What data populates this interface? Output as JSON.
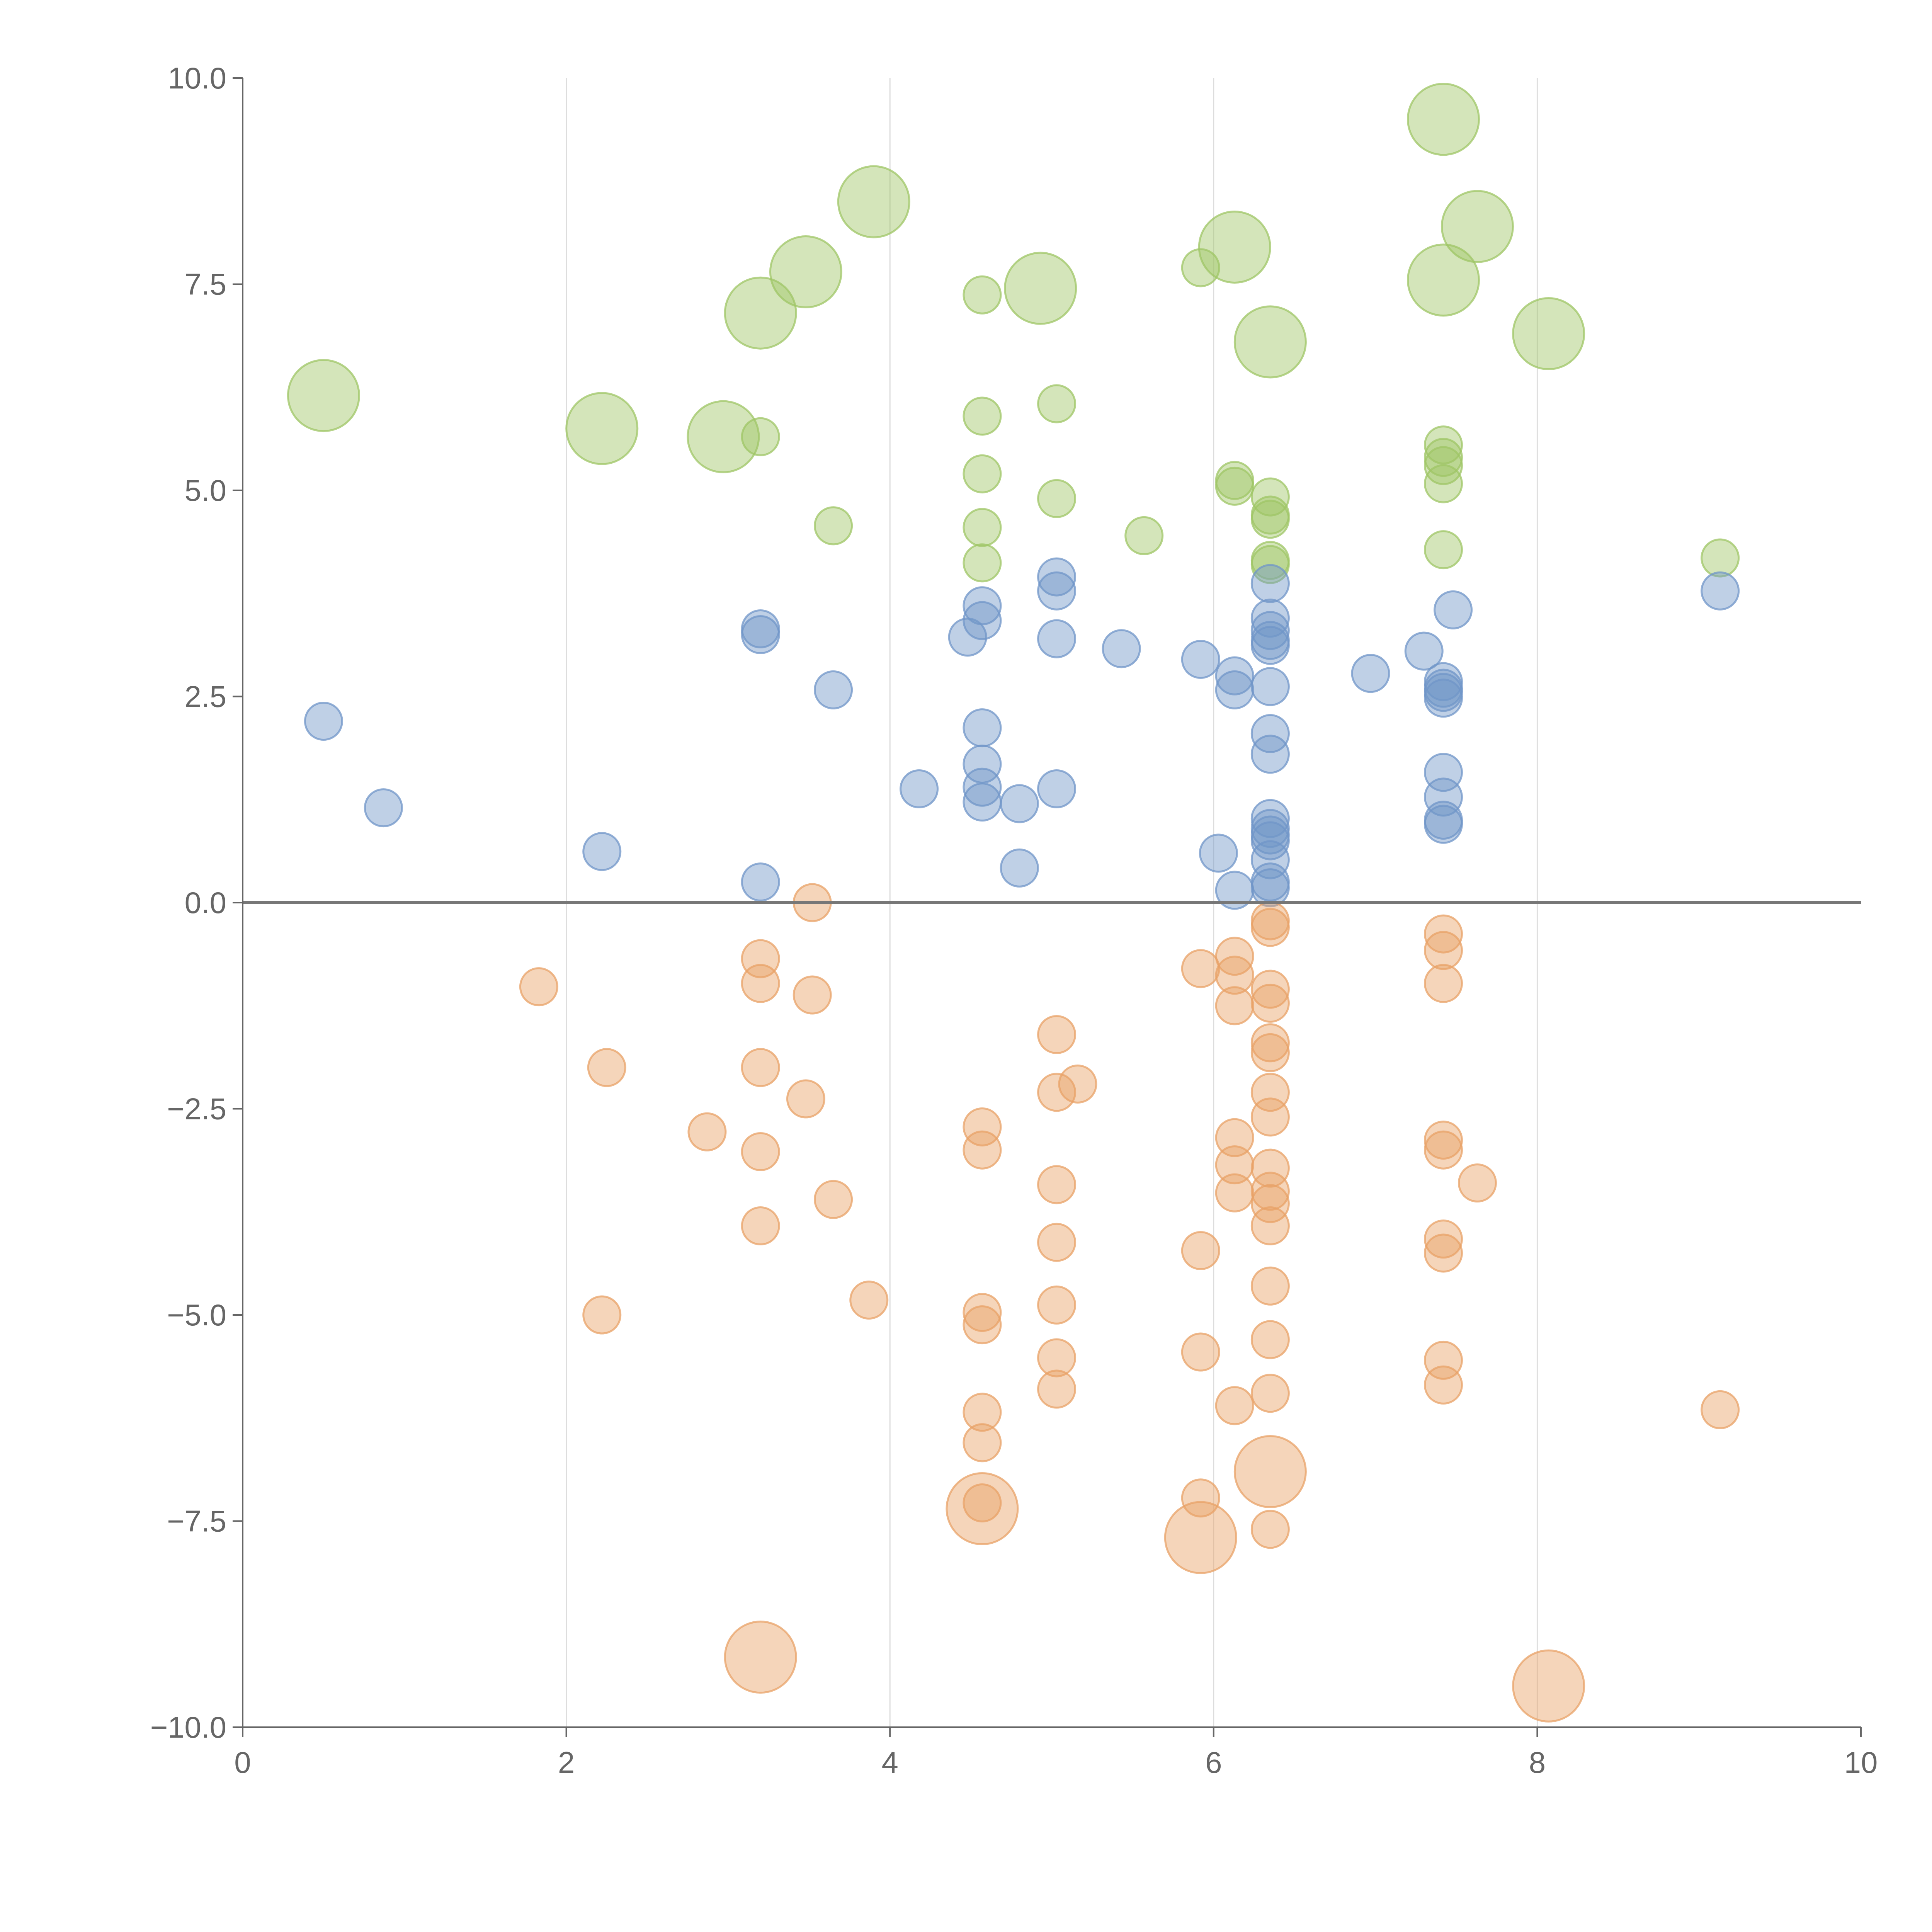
{
  "chart_data": {
    "type": "scatter",
    "title": "",
    "xlabel": "",
    "ylabel": "",
    "xlim": [
      0,
      10
    ],
    "ylim": [
      -10,
      10
    ],
    "x_ticks": [
      0,
      2,
      4,
      6,
      8,
      10
    ],
    "x_tick_labels": [
      "0",
      "2",
      "4",
      "6",
      "8",
      "10"
    ],
    "y_ticks": [
      10,
      7.5,
      5,
      2.5,
      0,
      -2.5,
      -5,
      -7.5,
      -10
    ],
    "y_tick_labels": [
      "10.0",
      "7.5",
      "5.0",
      "2.5",
      "0.0",
      "−2.5",
      "−5.0",
      "−7.5",
      "−10.0"
    ],
    "grid": "vertical",
    "legend": "none",
    "size_encoding": "bubble radius: small markers and large markers",
    "series": [
      {
        "name": "green",
        "color": "#9fc566",
        "points": [
          {
            "x": 0.5,
            "y": 6.15,
            "s": "large"
          },
          {
            "x": 2.22,
            "y": 5.75,
            "s": "large"
          },
          {
            "x": 2.97,
            "y": 5.65,
            "s": "large"
          },
          {
            "x": 3.2,
            "y": 7.15,
            "s": "large"
          },
          {
            "x": 3.48,
            "y": 7.65,
            "s": "large"
          },
          {
            "x": 3.9,
            "y": 8.5,
            "s": "large"
          },
          {
            "x": 4.93,
            "y": 7.45,
            "s": "large"
          },
          {
            "x": 6.13,
            "y": 7.95,
            "s": "large"
          },
          {
            "x": 6.35,
            "y": 6.8,
            "s": "large"
          },
          {
            "x": 7.42,
            "y": 9.5,
            "s": "large"
          },
          {
            "x": 7.42,
            "y": 7.55,
            "s": "large"
          },
          {
            "x": 7.63,
            "y": 8.2,
            "s": "large"
          },
          {
            "x": 8.07,
            "y": 6.9,
            "s": "large"
          },
          {
            "x": 3.2,
            "y": 5.65,
            "s": "small"
          },
          {
            "x": 3.65,
            "y": 4.57,
            "s": "small"
          },
          {
            "x": 4.57,
            "y": 7.37,
            "s": "small"
          },
          {
            "x": 4.57,
            "y": 5.9,
            "s": "small"
          },
          {
            "x": 4.57,
            "y": 5.2,
            "s": "small"
          },
          {
            "x": 4.57,
            "y": 4.55,
            "s": "small"
          },
          {
            "x": 4.57,
            "y": 4.12,
            "s": "small"
          },
          {
            "x": 5.03,
            "y": 6.05,
            "s": "small"
          },
          {
            "x": 5.03,
            "y": 4.9,
            "s": "small"
          },
          {
            "x": 5.57,
            "y": 4.45,
            "s": "small"
          },
          {
            "x": 5.92,
            "y": 7.7,
            "s": "small"
          },
          {
            "x": 6.13,
            "y": 5.12,
            "s": "small"
          },
          {
            "x": 6.13,
            "y": 5.05,
            "s": "small"
          },
          {
            "x": 6.35,
            "y": 4.92,
            "s": "small"
          },
          {
            "x": 6.35,
            "y": 4.7,
            "s": "small"
          },
          {
            "x": 6.35,
            "y": 4.65,
            "s": "small"
          },
          {
            "x": 6.35,
            "y": 4.15,
            "s": "small"
          },
          {
            "x": 6.35,
            "y": 4.1,
            "s": "small"
          },
          {
            "x": 7.42,
            "y": 5.55,
            "s": "small"
          },
          {
            "x": 7.42,
            "y": 5.4,
            "s": "small"
          },
          {
            "x": 7.42,
            "y": 5.3,
            "s": "small"
          },
          {
            "x": 7.42,
            "y": 5.08,
            "s": "small"
          },
          {
            "x": 7.42,
            "y": 4.28,
            "s": "small"
          },
          {
            "x": 9.13,
            "y": 4.18,
            "s": "small"
          }
        ]
      },
      {
        "name": "blue",
        "color": "#7096c8",
        "points": [
          {
            "x": 0.5,
            "y": 2.2,
            "s": "small"
          },
          {
            "x": 0.87,
            "y": 1.15,
            "s": "small"
          },
          {
            "x": 2.22,
            "y": 0.62,
            "s": "small"
          },
          {
            "x": 3.2,
            "y": 3.32,
            "s": "small"
          },
          {
            "x": 3.2,
            "y": 3.25,
            "s": "small"
          },
          {
            "x": 3.2,
            "y": 0.25,
            "s": "small"
          },
          {
            "x": 3.65,
            "y": 2.58,
            "s": "small"
          },
          {
            "x": 4.18,
            "y": 1.38,
            "s": "small"
          },
          {
            "x": 4.48,
            "y": 3.22,
            "s": "small"
          },
          {
            "x": 4.57,
            "y": 3.6,
            "s": "small"
          },
          {
            "x": 4.57,
            "y": 3.42,
            "s": "small"
          },
          {
            "x": 4.57,
            "y": 2.12,
            "s": "small"
          },
          {
            "x": 4.57,
            "y": 1.68,
            "s": "small"
          },
          {
            "x": 4.57,
            "y": 1.4,
            "s": "small"
          },
          {
            "x": 4.57,
            "y": 1.22,
            "s": "small"
          },
          {
            "x": 4.8,
            "y": 1.2,
            "s": "small"
          },
          {
            "x": 4.8,
            "y": 0.42,
            "s": "small"
          },
          {
            "x": 5.03,
            "y": 3.95,
            "s": "small"
          },
          {
            "x": 5.03,
            "y": 3.78,
            "s": "small"
          },
          {
            "x": 5.03,
            "y": 3.2,
            "s": "small"
          },
          {
            "x": 5.03,
            "y": 1.38,
            "s": "small"
          },
          {
            "x": 5.43,
            "y": 3.08,
            "s": "small"
          },
          {
            "x": 5.92,
            "y": 2.95,
            "s": "small"
          },
          {
            "x": 6.03,
            "y": 0.6,
            "s": "small"
          },
          {
            "x": 6.13,
            "y": 2.75,
            "s": "small"
          },
          {
            "x": 6.13,
            "y": 2.58,
            "s": "small"
          },
          {
            "x": 6.13,
            "y": 0.15,
            "s": "small"
          },
          {
            "x": 6.35,
            "y": 3.87,
            "s": "small"
          },
          {
            "x": 6.35,
            "y": 3.45,
            "s": "small"
          },
          {
            "x": 6.35,
            "y": 3.3,
            "s": "small"
          },
          {
            "x": 6.35,
            "y": 3.18,
            "s": "small"
          },
          {
            "x": 6.35,
            "y": 3.12,
            "s": "small"
          },
          {
            "x": 6.35,
            "y": 2.62,
            "s": "small"
          },
          {
            "x": 6.35,
            "y": 2.05,
            "s": "small"
          },
          {
            "x": 6.35,
            "y": 1.8,
            "s": "small"
          },
          {
            "x": 6.35,
            "y": 1.02,
            "s": "small"
          },
          {
            "x": 6.35,
            "y": 0.9,
            "s": "small"
          },
          {
            "x": 6.35,
            "y": 0.82,
            "s": "small"
          },
          {
            "x": 6.35,
            "y": 0.75,
            "s": "small"
          },
          {
            "x": 6.35,
            "y": 0.52,
            "s": "small"
          },
          {
            "x": 6.35,
            "y": 0.25,
            "s": "small"
          },
          {
            "x": 6.35,
            "y": 0.18,
            "s": "small"
          },
          {
            "x": 6.97,
            "y": 2.78,
            "s": "small"
          },
          {
            "x": 7.3,
            "y": 3.05,
            "s": "small"
          },
          {
            "x": 7.42,
            "y": 2.68,
            "s": "small"
          },
          {
            "x": 7.42,
            "y": 2.6,
            "s": "small"
          },
          {
            "x": 7.42,
            "y": 2.55,
            "s": "small"
          },
          {
            "x": 7.42,
            "y": 2.48,
            "s": "small"
          },
          {
            "x": 7.42,
            "y": 1.58,
            "s": "small"
          },
          {
            "x": 7.42,
            "y": 1.28,
            "s": "small"
          },
          {
            "x": 7.42,
            "y": 1.0,
            "s": "small"
          },
          {
            "x": 7.42,
            "y": 0.95,
            "s": "small"
          },
          {
            "x": 7.48,
            "y": 3.55,
            "s": "small"
          },
          {
            "x": 9.13,
            "y": 3.78,
            "s": "small"
          }
        ]
      },
      {
        "name": "orange",
        "color": "#e8a167",
        "points": [
          {
            "x": 1.83,
            "y": -1.02,
            "s": "small"
          },
          {
            "x": 2.22,
            "y": -5.0,
            "s": "small"
          },
          {
            "x": 2.25,
            "y": -2.0,
            "s": "small"
          },
          {
            "x": 2.87,
            "y": -2.78,
            "s": "small"
          },
          {
            "x": 3.2,
            "y": -0.68,
            "s": "small"
          },
          {
            "x": 3.2,
            "y": -0.98,
            "s": "small"
          },
          {
            "x": 3.2,
            "y": -2.0,
            "s": "small"
          },
          {
            "x": 3.2,
            "y": -3.02,
            "s": "small"
          },
          {
            "x": 3.2,
            "y": -3.92,
            "s": "small"
          },
          {
            "x": 3.48,
            "y": -2.38,
            "s": "small"
          },
          {
            "x": 3.52,
            "y": 0.0,
            "s": "small"
          },
          {
            "x": 3.52,
            "y": -1.12,
            "s": "small"
          },
          {
            "x": 3.65,
            "y": -3.6,
            "s": "small"
          },
          {
            "x": 3.87,
            "y": -4.82,
            "s": "small"
          },
          {
            "x": 4.57,
            "y": -2.72,
            "s": "small"
          },
          {
            "x": 4.57,
            "y": -3.0,
            "s": "small"
          },
          {
            "x": 4.57,
            "y": -4.97,
            "s": "small"
          },
          {
            "x": 4.57,
            "y": -5.12,
            "s": "small"
          },
          {
            "x": 4.57,
            "y": -6.18,
            "s": "small"
          },
          {
            "x": 4.57,
            "y": -6.55,
            "s": "small"
          },
          {
            "x": 4.57,
            "y": -7.28,
            "s": "small"
          },
          {
            "x": 5.03,
            "y": -1.6,
            "s": "small"
          },
          {
            "x": 5.03,
            "y": -2.3,
            "s": "small"
          },
          {
            "x": 5.16,
            "y": -2.2,
            "s": "small"
          },
          {
            "x": 5.03,
            "y": -3.42,
            "s": "small"
          },
          {
            "x": 5.03,
            "y": -4.12,
            "s": "small"
          },
          {
            "x": 5.03,
            "y": -4.88,
            "s": "small"
          },
          {
            "x": 5.03,
            "y": -5.52,
            "s": "small"
          },
          {
            "x": 5.03,
            "y": -5.9,
            "s": "small"
          },
          {
            "x": 5.92,
            "y": -0.8,
            "s": "small"
          },
          {
            "x": 5.92,
            "y": -4.22,
            "s": "small"
          },
          {
            "x": 5.92,
            "y": -5.45,
            "s": "small"
          },
          {
            "x": 5.92,
            "y": -7.22,
            "s": "small"
          },
          {
            "x": 6.13,
            "y": -0.65,
            "s": "small"
          },
          {
            "x": 6.13,
            "y": -0.88,
            "s": "small"
          },
          {
            "x": 6.13,
            "y": -1.25,
            "s": "small"
          },
          {
            "x": 6.13,
            "y": -2.85,
            "s": "small"
          },
          {
            "x": 6.13,
            "y": -3.18,
            "s": "small"
          },
          {
            "x": 6.13,
            "y": -3.52,
            "s": "small"
          },
          {
            "x": 6.13,
            "y": -6.1,
            "s": "small"
          },
          {
            "x": 6.35,
            "y": -0.22,
            "s": "small"
          },
          {
            "x": 6.35,
            "y": -0.3,
            "s": "small"
          },
          {
            "x": 6.35,
            "y": -1.05,
            "s": "small"
          },
          {
            "x": 6.35,
            "y": -1.22,
            "s": "small"
          },
          {
            "x": 6.35,
            "y": -1.7,
            "s": "small"
          },
          {
            "x": 6.35,
            "y": -1.82,
            "s": "small"
          },
          {
            "x": 6.35,
            "y": -2.3,
            "s": "small"
          },
          {
            "x": 6.35,
            "y": -2.6,
            "s": "small"
          },
          {
            "x": 6.35,
            "y": -3.22,
            "s": "small"
          },
          {
            "x": 6.35,
            "y": -3.5,
            "s": "small"
          },
          {
            "x": 6.35,
            "y": -3.65,
            "s": "small"
          },
          {
            "x": 6.35,
            "y": -3.92,
            "s": "small"
          },
          {
            "x": 6.35,
            "y": -4.65,
            "s": "small"
          },
          {
            "x": 6.35,
            "y": -5.3,
            "s": "small"
          },
          {
            "x": 6.35,
            "y": -5.95,
            "s": "small"
          },
          {
            "x": 6.35,
            "y": -7.6,
            "s": "small"
          },
          {
            "x": 7.42,
            "y": -0.38,
            "s": "small"
          },
          {
            "x": 7.42,
            "y": -0.58,
            "s": "small"
          },
          {
            "x": 7.42,
            "y": -0.98,
            "s": "small"
          },
          {
            "x": 7.42,
            "y": -2.88,
            "s": "small"
          },
          {
            "x": 7.42,
            "y": -3.0,
            "s": "small"
          },
          {
            "x": 7.42,
            "y": -4.08,
            "s": "small"
          },
          {
            "x": 7.42,
            "y": -4.25,
            "s": "small"
          },
          {
            "x": 7.42,
            "y": -5.55,
            "s": "small"
          },
          {
            "x": 7.42,
            "y": -5.85,
            "s": "small"
          },
          {
            "x": 7.63,
            "y": -3.4,
            "s": "small"
          },
          {
            "x": 9.13,
            "y": -6.15,
            "s": "small"
          },
          {
            "x": 3.2,
            "y": -9.15,
            "s": "large"
          },
          {
            "x": 4.57,
            "y": -7.35,
            "s": "large"
          },
          {
            "x": 5.92,
            "y": -7.7,
            "s": "large"
          },
          {
            "x": 6.35,
            "y": -6.9,
            "s": "large"
          },
          {
            "x": 8.07,
            "y": -9.5,
            "s": "large"
          }
        ]
      }
    ]
  }
}
